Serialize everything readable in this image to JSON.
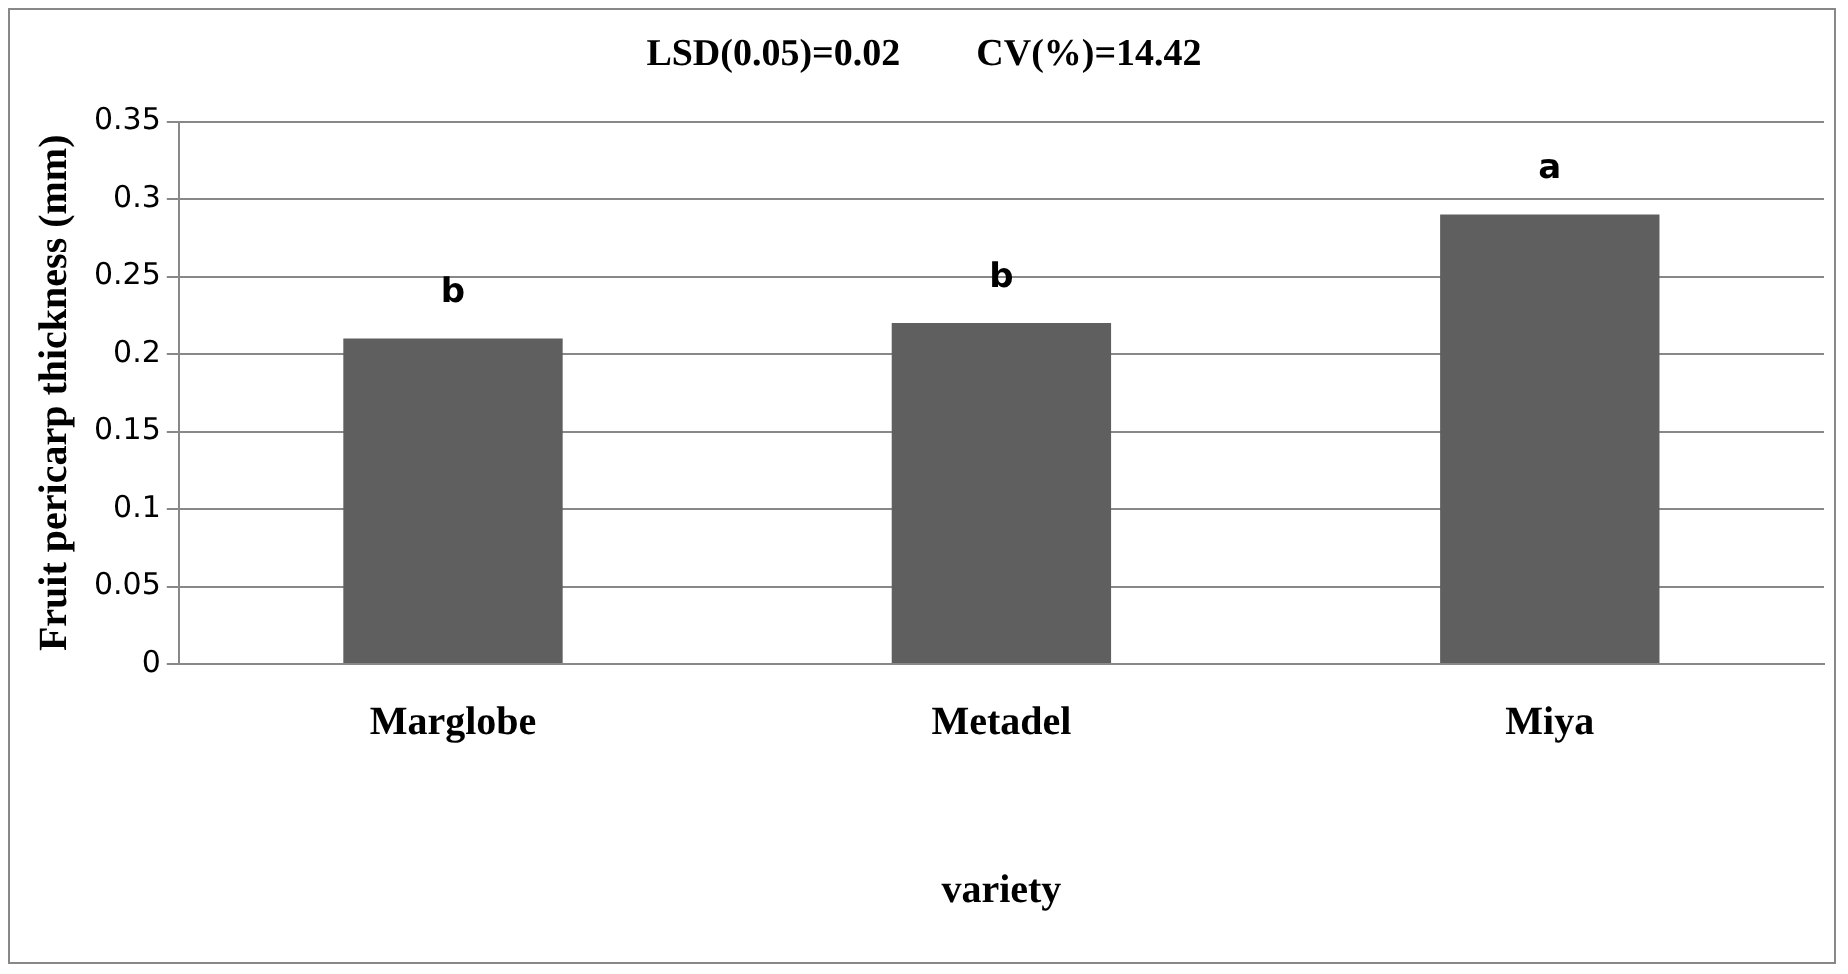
{
  "chart_data": {
    "type": "bar",
    "title": "LSD(0.05)=0.02        CV(%)=14.42",
    "xlabel": "variety",
    "ylabel": "Fruit pericarp thickness (mm)",
    "categories": [
      "Marglobe",
      "Metadel",
      "Miya"
    ],
    "values": [
      0.21,
      0.22,
      0.29
    ],
    "color": "#5f5f5f",
    "ylim": [
      0,
      0.35
    ],
    "yticks": [
      0,
      0.05,
      0.1,
      0.15,
      0.2,
      0.25,
      0.3,
      0.35
    ],
    "grid": "y",
    "annotations": [
      {
        "text": "b",
        "x": "Marglobe",
        "y": 0.21
      },
      {
        "text": "b",
        "x": "Metadel",
        "y": 0.22
      },
      {
        "text": "a",
        "x": "Miya",
        "y": 0.29
      }
    ]
  }
}
